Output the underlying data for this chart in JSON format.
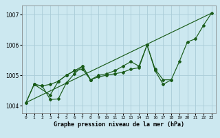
{
  "title": "Graphe pression niveau de la mer (hPa)",
  "background_color": "#cce8f0",
  "grid_color": "#aaccd8",
  "line_color": "#1a5c1a",
  "xlim": [
    -0.5,
    23.5
  ],
  "ylim": [
    1003.75,
    1007.3
  ],
  "yticks": [
    1004,
    1005,
    1006,
    1007
  ],
  "xticks": [
    0,
    1,
    2,
    3,
    4,
    5,
    6,
    7,
    8,
    9,
    10,
    11,
    12,
    13,
    14,
    15,
    16,
    17,
    18,
    19,
    20,
    21,
    22,
    23
  ],
  "series1_x": [
    0,
    1,
    3,
    4,
    5,
    6,
    7,
    8,
    9,
    10,
    11,
    12,
    13,
    14,
    15,
    16,
    17,
    18
  ],
  "series1_y": [
    1004.1,
    1004.7,
    1004.35,
    1004.8,
    1005.0,
    1005.15,
    1005.2,
    1004.85,
    1004.95,
    1005.0,
    1005.05,
    1005.1,
    1005.2,
    1005.25,
    1006.0,
    1005.2,
    1004.85,
    1004.85
  ],
  "series2_x": [
    0,
    1,
    2,
    3,
    4,
    5,
    6,
    7,
    8,
    9,
    10,
    11,
    12,
    13,
    14,
    15,
    16,
    17,
    18,
    19,
    20,
    21,
    22,
    23
  ],
  "series2_y": [
    1004.1,
    1004.7,
    1004.65,
    1004.7,
    1004.8,
    1005.0,
    1005.15,
    1005.3,
    1004.85,
    1005.0,
    1005.05,
    1005.15,
    1005.3,
    1005.45,
    1005.3,
    1006.0,
    1005.15,
    1004.7,
    1004.85,
    1005.45,
    1006.1,
    1006.2,
    1006.65,
    1007.05
  ],
  "series3_x": [
    1,
    2,
    3,
    4,
    5,
    6,
    7,
    8
  ],
  "series3_y": [
    1004.7,
    1004.65,
    1004.2,
    1004.22,
    1004.75,
    1005.05,
    1005.3,
    1004.85
  ],
  "series5_x": [
    0,
    23
  ],
  "series5_y": [
    1004.1,
    1007.05
  ]
}
